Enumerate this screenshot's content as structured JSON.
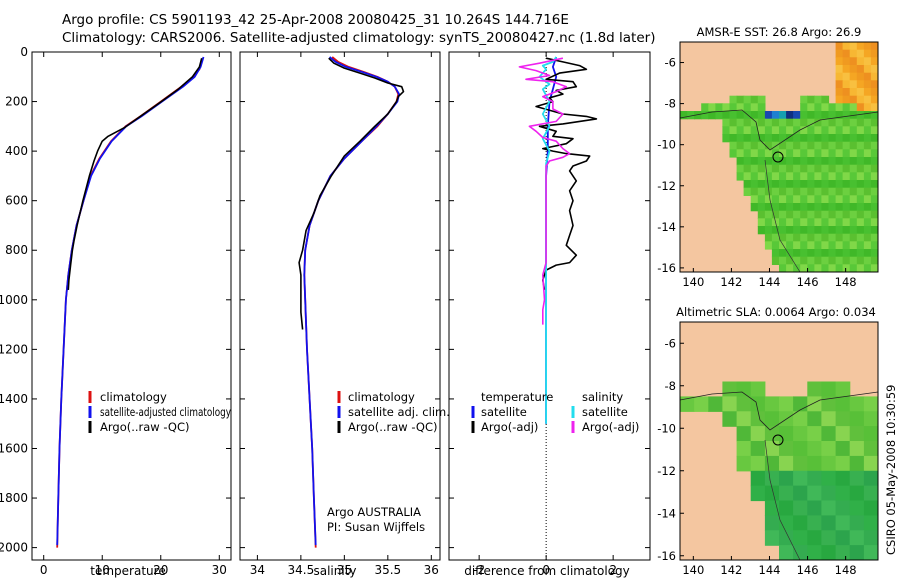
{
  "header": {
    "title_line1": "Argo profile: CS 5901193_42 25-Apr-2008 20080425_31 10.264S 144.716E",
    "title_line2": "Climatology: CARS2006. Satellite-adjusted climatology: synTS_20080427.nc (1.8d later)"
  },
  "side_text": "CSIRO 05-May-2008 10:30:59",
  "colors": {
    "climatology": "#dd1111",
    "satellite": "#1111ee",
    "argo": "#000000",
    "sat_sal": "#22ddee",
    "argo_sal": "#ee22ee",
    "land": "#f4c6a0"
  },
  "chart_data": [
    {
      "type": "line",
      "id": "temperature",
      "xlabel": "temperature",
      "xlim": [
        -2,
        32
      ],
      "ylim": [
        0,
        2050
      ],
      "yticks": [
        0,
        200,
        400,
        600,
        800,
        1000,
        1200,
        1400,
        1600,
        1800,
        2000
      ],
      "xticks": [
        0,
        10,
        20,
        30
      ],
      "legend": [
        "climatology",
        "satellite-adjusted climatology",
        "Argo(..raw -QC)"
      ],
      "series": [
        {
          "name": "climatology",
          "points": [
            [
              27,
              40
            ],
            [
              26.6,
              70
            ],
            [
              25.5,
              100
            ],
            [
              23.5,
              140
            ],
            [
              20,
              200
            ],
            [
              16.5,
              260
            ],
            [
              14,
              300
            ],
            [
              11.5,
              360
            ],
            [
              9.5,
              430
            ],
            [
              8,
              500
            ],
            [
              6.8,
              600
            ],
            [
              5.6,
              700
            ],
            [
              4.8,
              800
            ],
            [
              4.2,
              900
            ],
            [
              3.8,
              1000
            ],
            [
              3.4,
              1200
            ],
            [
              3.0,
              1400
            ],
            [
              2.7,
              1600
            ],
            [
              2.5,
              1800
            ],
            [
              2.3,
              2000
            ]
          ]
        },
        {
          "name": "satellite-adjusted climatology",
          "points": [
            [
              27.3,
              20
            ],
            [
              26.8,
              60
            ],
            [
              25.8,
              100
            ],
            [
              23.8,
              140
            ],
            [
              20.2,
              200
            ],
            [
              16.7,
              260
            ],
            [
              14.1,
              300
            ],
            [
              11.6,
              360
            ],
            [
              9.6,
              430
            ],
            [
              8.1,
              500
            ],
            [
              6.8,
              600
            ],
            [
              5.6,
              700
            ],
            [
              4.8,
              800
            ],
            [
              4.2,
              900
            ],
            [
              3.8,
              1000
            ],
            [
              3.4,
              1200
            ],
            [
              3.0,
              1400
            ],
            [
              2.7,
              1600
            ],
            [
              2.5,
              1800
            ],
            [
              2.3,
              1990
            ]
          ]
        },
        {
          "name": "Argo(..raw -QC)",
          "points": [
            [
              27,
              25
            ],
            [
              26.6,
              60
            ],
            [
              25.4,
              100
            ],
            [
              23,
              150
            ],
            [
              19.8,
              205
            ],
            [
              16.2,
              265
            ],
            [
              13.8,
              305
            ],
            [
              11,
              340
            ],
            [
              10,
              360
            ],
            [
              9.2,
              400
            ],
            [
              8.6,
              440
            ],
            [
              7.8,
              500
            ],
            [
              6.7,
              600
            ],
            [
              5.7,
              700
            ],
            [
              5.2,
              760
            ],
            [
              4.9,
              800
            ],
            [
              4.6,
              860
            ],
            [
              4.3,
              920
            ],
            [
              4.2,
              960
            ]
          ]
        }
      ]
    },
    {
      "type": "line",
      "id": "salinity",
      "xlabel": "salinity",
      "xlim": [
        33.8,
        36.1
      ],
      "ylim": [
        0,
        2050
      ],
      "xticks": [
        34,
        34.5,
        35,
        35.5,
        36
      ],
      "legend": [
        "climatology",
        "satellite adj. clim.",
        "Argo(..raw -QC)"
      ],
      "annotation_line1": "Argo AUSTRALIA",
      "annotation_line2": "PI: Susan Wijffels",
      "series": [
        {
          "name": "climatology",
          "points": [
            [
              34.86,
              20
            ],
            [
              34.93,
              40
            ],
            [
              35.05,
              60
            ],
            [
              35.22,
              80
            ],
            [
              35.38,
              100
            ],
            [
              35.5,
              120
            ],
            [
              35.58,
              140
            ],
            [
              35.62,
              170
            ],
            [
              35.6,
              200
            ],
            [
              35.5,
              250
            ],
            [
              35.38,
              300
            ],
            [
              35.2,
              360
            ],
            [
              35.0,
              430
            ],
            [
              34.84,
              500
            ],
            [
              34.7,
              600
            ],
            [
              34.6,
              700
            ],
            [
              34.55,
              800
            ],
            [
              34.54,
              900
            ],
            [
              34.55,
              1000
            ],
            [
              34.57,
              1200
            ],
            [
              34.6,
              1400
            ],
            [
              34.63,
              1600
            ],
            [
              34.65,
              1800
            ],
            [
              34.67,
              2000
            ]
          ]
        },
        {
          "name": "satellite adj. clim.",
          "points": [
            [
              34.83,
              20
            ],
            [
              34.9,
              40
            ],
            [
              35.02,
              60
            ],
            [
              35.2,
              80
            ],
            [
              35.37,
              100
            ],
            [
              35.5,
              120
            ],
            [
              35.58,
              140
            ],
            [
              35.63,
              170
            ],
            [
              35.61,
              200
            ],
            [
              35.5,
              250
            ],
            [
              35.37,
              300
            ],
            [
              35.2,
              360
            ],
            [
              35.0,
              430
            ],
            [
              34.84,
              500
            ],
            [
              34.7,
              600
            ],
            [
              34.6,
              700
            ],
            [
              34.55,
              800
            ],
            [
              34.54,
              900
            ],
            [
              34.55,
              1000
            ],
            [
              34.57,
              1200
            ],
            [
              34.6,
              1400
            ],
            [
              34.63,
              1600
            ],
            [
              34.65,
              1800
            ],
            [
              34.67,
              1990
            ]
          ]
        },
        {
          "name": "Argo(..raw -QC)",
          "points": [
            [
              34.82,
              25
            ],
            [
              34.88,
              45
            ],
            [
              35.0,
              65
            ],
            [
              35.18,
              85
            ],
            [
              35.35,
              105
            ],
            [
              35.5,
              125
            ],
            [
              35.66,
              140
            ],
            [
              35.68,
              160
            ],
            [
              35.62,
              180
            ],
            [
              35.6,
              200
            ],
            [
              35.5,
              250
            ],
            [
              35.35,
              300
            ],
            [
              35.18,
              360
            ],
            [
              35.0,
              420
            ],
            [
              34.85,
              500
            ],
            [
              34.72,
              580
            ],
            [
              34.65,
              650
            ],
            [
              34.56,
              720
            ],
            [
              34.52,
              800
            ],
            [
              34.48,
              850
            ],
            [
              34.5,
              900
            ],
            [
              34.5,
              980
            ],
            [
              34.5,
              1050
            ],
            [
              34.52,
              1120
            ]
          ]
        }
      ]
    },
    {
      "type": "line",
      "id": "difference",
      "xlabel": "difference from climatology",
      "xlim": [
        -2.9,
        3.1
      ],
      "ylim": [
        0,
        2050
      ],
      "xticks": [
        -2,
        0,
        2
      ],
      "legend_col1_title": "temperature",
      "legend_col2_title": "salinity",
      "legend_col1": [
        "satellite",
        "Argo(-adj)"
      ],
      "legend_col2": [
        "satellite",
        "Argo(-adj)"
      ],
      "series": [
        {
          "name": "temperature satellite",
          "points": [
            [
              0.3,
              20
            ],
            [
              0.2,
              60
            ],
            [
              0.3,
              100
            ],
            [
              0.2,
              150
            ],
            [
              0.1,
              200
            ],
            [
              0.05,
              300
            ],
            [
              0.05,
              400
            ],
            [
              0,
              500
            ],
            [
              0,
              700
            ],
            [
              0,
              900
            ],
            [
              0,
              1200
            ],
            [
              0,
              1500
            ]
          ]
        },
        {
          "name": "temperature Argo(-adj)",
          "points": [
            [
              0,
              25
            ],
            [
              0.5,
              40
            ],
            [
              1,
              55
            ],
            [
              1.2,
              70
            ],
            [
              0.4,
              85
            ],
            [
              0,
              110
            ],
            [
              0.8,
              120
            ],
            [
              0.9,
              140
            ],
            [
              0.3,
              155
            ],
            [
              0.5,
              170
            ],
            [
              0.1,
              185
            ],
            [
              0.2,
              200
            ],
            [
              -0.3,
              220
            ],
            [
              0.5,
              250
            ],
            [
              1.2,
              260
            ],
            [
              1.5,
              270
            ],
            [
              0.5,
              290
            ],
            [
              -0.2,
              300
            ],
            [
              0.3,
              320
            ],
            [
              0.2,
              340
            ],
            [
              0.8,
              350
            ],
            [
              0.6,
              370
            ],
            [
              -0.1,
              390
            ],
            [
              0.2,
              400
            ],
            [
              0.6,
              410
            ],
            [
              1.3,
              420
            ],
            [
              1.2,
              440
            ],
            [
              0.8,
              460
            ],
            [
              0.7,
              480
            ],
            [
              0.9,
              520
            ],
            [
              0.7,
              560
            ],
            [
              0.8,
              600
            ],
            [
              0.7,
              640
            ],
            [
              0.8,
              700
            ],
            [
              0.7,
              740
            ],
            [
              0.6,
              780
            ],
            [
              0.9,
              820
            ],
            [
              0.7,
              850
            ],
            [
              0.3,
              860
            ],
            [
              0,
              880
            ],
            [
              -0.1,
              920
            ],
            [
              -0.05,
              960
            ]
          ]
        },
        {
          "name": "salinity satellite",
          "points": [
            [
              0.3,
              20
            ],
            [
              0.2,
              40
            ],
            [
              -0.1,
              55
            ],
            [
              0,
              70
            ],
            [
              -0.2,
              100
            ],
            [
              0.1,
              130
            ],
            [
              -0.1,
              150
            ],
            [
              0.1,
              200
            ],
            [
              -0.1,
              250
            ],
            [
              0.1,
              300
            ],
            [
              -0.1,
              350
            ],
            [
              0.1,
              400
            ],
            [
              0,
              450
            ],
            [
              0,
              600
            ],
            [
              0,
              900
            ],
            [
              0,
              1200
            ],
            [
              0,
              1500
            ]
          ]
        },
        {
          "name": "salinity Argo(-adj)",
          "points": [
            [
              0.5,
              25
            ],
            [
              -0.2,
              45
            ],
            [
              -0.8,
              60
            ],
            [
              -0.3,
              75
            ],
            [
              0.1,
              95
            ],
            [
              -0.6,
              110
            ],
            [
              0.2,
              120
            ],
            [
              0.6,
              140
            ],
            [
              0.3,
              160
            ],
            [
              -0.1,
              180
            ],
            [
              0.2,
              200
            ],
            [
              0.2,
              230
            ],
            [
              0.5,
              250
            ],
            [
              0.3,
              280
            ],
            [
              -0.5,
              300
            ],
            [
              -0.3,
              320
            ],
            [
              -0.1,
              345
            ],
            [
              0.3,
              360
            ],
            [
              0.5,
              390
            ],
            [
              0.7,
              410
            ],
            [
              0.5,
              425
            ],
            [
              0.1,
              440
            ],
            [
              0,
              460
            ],
            [
              0,
              500
            ],
            [
              0,
              600
            ],
            [
              0,
              700
            ],
            [
              0,
              800
            ],
            [
              0,
              850
            ],
            [
              -0.1,
              900
            ],
            [
              -0.05,
              1000
            ],
            [
              -0.1,
              1040
            ],
            [
              -0.1,
              1100
            ]
          ]
        }
      ]
    },
    {
      "type": "heatmap",
      "id": "sst-map",
      "title": "AMSR-E SST: 26.8 Argo: 26.9",
      "xticks": [
        140,
        142,
        144,
        146,
        148
      ],
      "yticks": [
        -6,
        -8,
        -10,
        -12,
        -14,
        -16
      ]
    },
    {
      "type": "heatmap",
      "id": "sla-map",
      "title": "Altimetric SLA: 0.0064 Argo: 0.034",
      "xticks": [
        140,
        142,
        144,
        146,
        148
      ],
      "yticks": [
        -6,
        -8,
        -10,
        -12,
        -14,
        -16
      ]
    }
  ]
}
